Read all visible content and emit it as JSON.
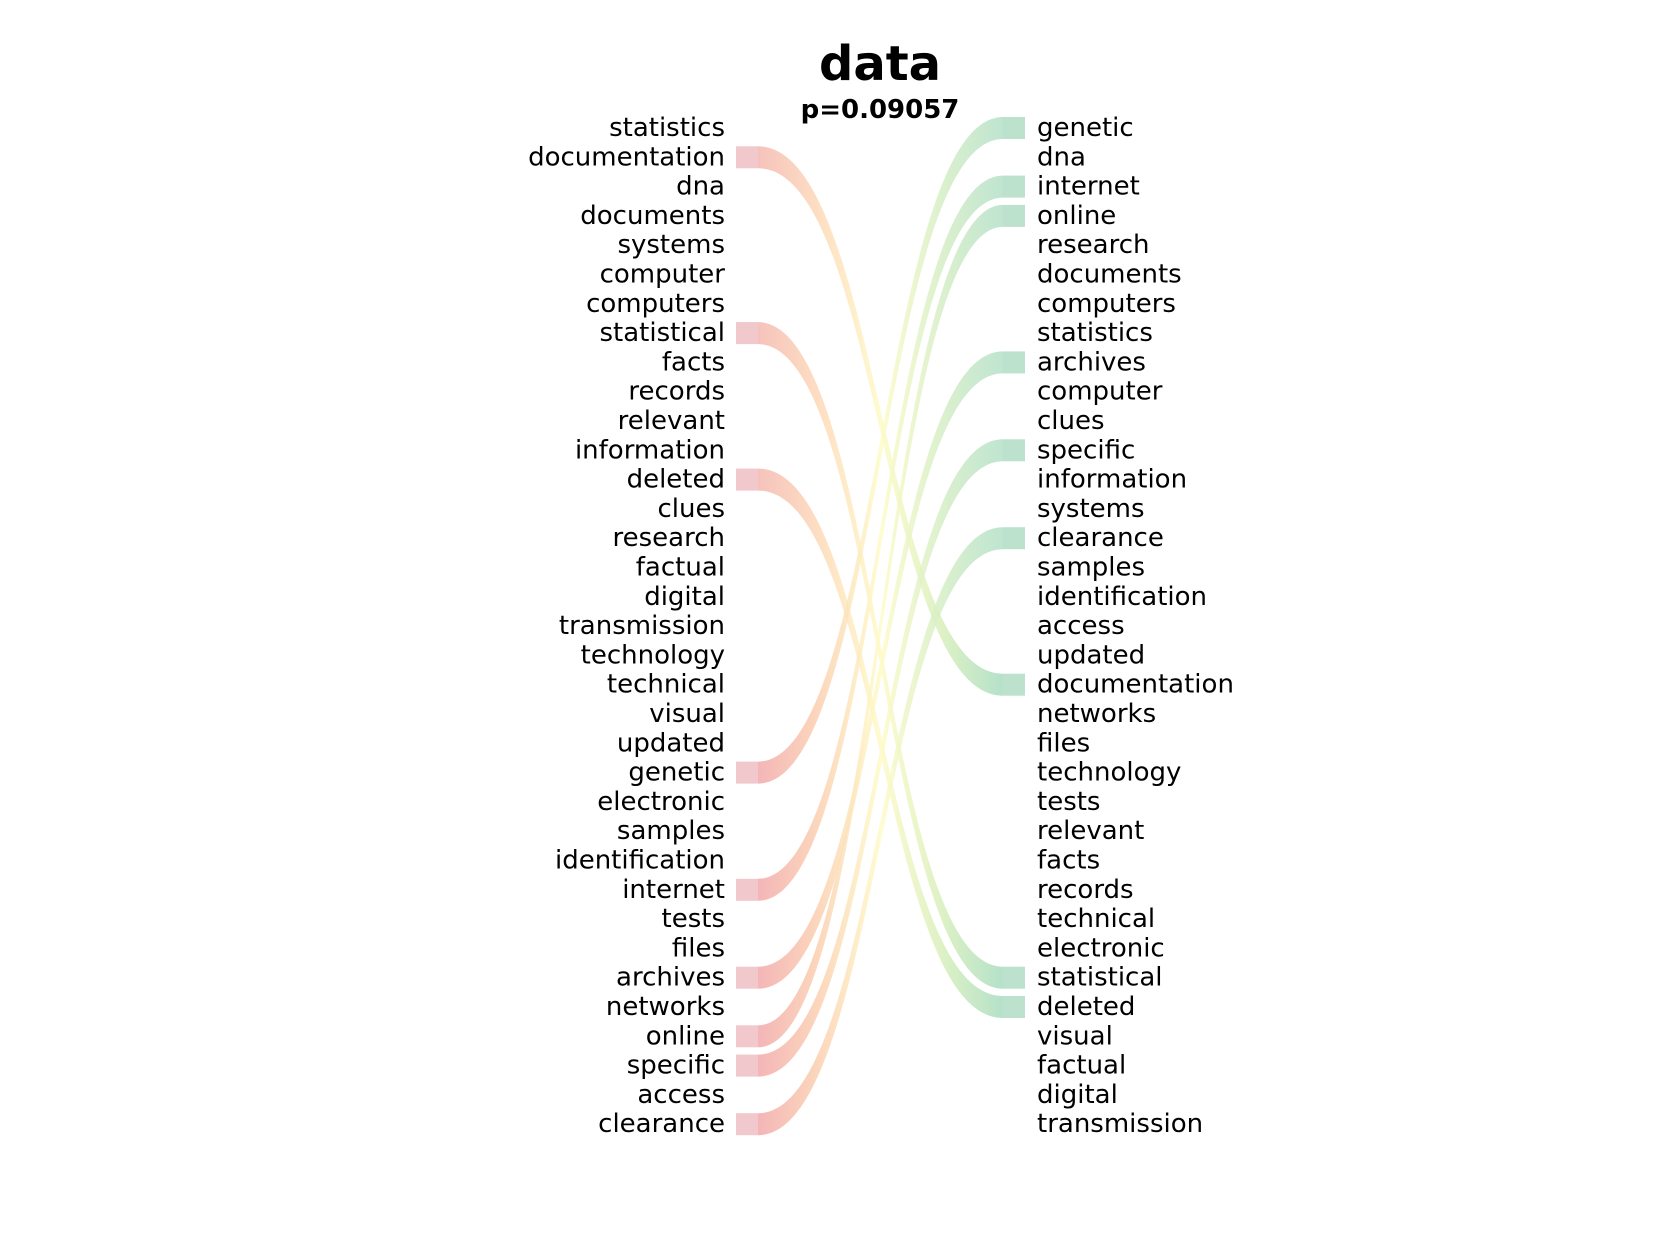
{
  "chart_data": {
    "type": "bump",
    "title": "data",
    "subtitle": "p=0.09057",
    "left_words": [
      "statistics",
      "documentation",
      "dna",
      "documents",
      "systems",
      "computer",
      "computers",
      "statistical",
      "facts",
      "records",
      "relevant",
      "information",
      "deleted",
      "clues",
      "research",
      "factual",
      "digital",
      "transmission",
      "technology",
      "technical",
      "visual",
      "updated",
      "genetic",
      "electronic",
      "samples",
      "identification",
      "internet",
      "tests",
      "files",
      "archives",
      "networks",
      "online",
      "specific",
      "access",
      "clearance"
    ],
    "right_words": [
      "genetic",
      "dna",
      "internet",
      "online",
      "research",
      "documents",
      "computers",
      "statistics",
      "archives",
      "computer",
      "clues",
      "specific",
      "information",
      "systems",
      "clearance",
      "samples",
      "identification",
      "access",
      "updated",
      "documentation",
      "networks",
      "files",
      "technology",
      "tests",
      "relevant",
      "facts",
      "records",
      "technical",
      "electronic",
      "statistical",
      "deleted",
      "visual",
      "factual",
      "digital",
      "transmission"
    ],
    "links": [
      {
        "left": "documentation",
        "right": "documentation"
      },
      {
        "left": "statistical",
        "right": "statistical"
      },
      {
        "left": "deleted",
        "right": "deleted"
      },
      {
        "left": "genetic",
        "right": "genetic"
      },
      {
        "left": "internet",
        "right": "internet"
      },
      {
        "left": "archives",
        "right": "archives"
      },
      {
        "left": "online",
        "right": "online"
      },
      {
        "left": "specific",
        "right": "specific"
      },
      {
        "left": "clearance",
        "right": "clearance"
      }
    ],
    "colors": {
      "left_marker": "#e8a3a8",
      "right_marker": "#9fd4b6",
      "gradient_moving_down": [
        "#f4b8b0",
        "#fdd9b8",
        "#fefac8",
        "#d8efbb",
        "#a8dcc0"
      ],
      "gradient_moving_up": [
        "#f2a9ab",
        "#fbd0b0",
        "#fefbc9",
        "#d5eec5",
        "#b3e0c8"
      ],
      "text": "#000000"
    }
  }
}
